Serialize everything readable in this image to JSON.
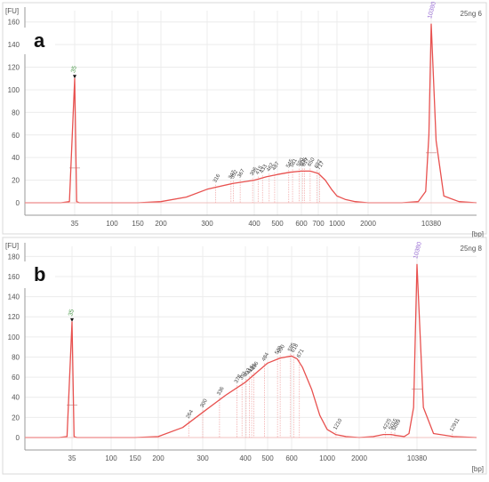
{
  "colors": {
    "trace": "#e8514f",
    "axis": "#9a9a9a",
    "grid": "#ececec",
    "marker_green": "#5aa35a",
    "marker_purple": "#9b6fd6",
    "background": "#ffffff",
    "panel_frame": "#d8d8d8"
  },
  "chart_data": [
    {
      "type": "line",
      "panel_letter": "a",
      "sample_label": "25ng 6",
      "ylabel": "[FU]",
      "xlabel": "[bp]",
      "ylim": [
        0,
        170
      ],
      "yticks": [
        0,
        20,
        40,
        60,
        80,
        100,
        120,
        140,
        160
      ],
      "x_scale": "log",
      "xticks": [
        "35",
        "100",
        "150",
        "200",
        "300",
        "400",
        "500",
        "600",
        "700",
        "1000",
        "2000",
        "10380"
      ],
      "grid": true,
      "marker_labels": [
        {
          "text": "35",
          "color": "green",
          "at_bp": 35
        },
        {
          "text": "10380",
          "color": "purple",
          "at_bp": 10380
        }
      ],
      "peak_labels": [
        "316",
        "347",
        "352",
        "367",
        "396",
        "415",
        "433",
        "462",
        "487",
        "545",
        "561",
        "590",
        "606",
        "617",
        "650",
        "692",
        "717"
      ],
      "series": [
        {
          "x": [
            20,
            30,
            33,
            35,
            37,
            40,
            60,
            100,
            150,
            200,
            250,
            300,
            350,
            400,
            450,
            500,
            550,
            600,
            650,
            700,
            800,
            900,
            1000,
            1200,
            1500,
            2000,
            3000,
            5000,
            8000,
            9500,
            10000,
            10380,
            10800,
            11500,
            13000,
            15000
          ],
          "y": [
            0,
            0,
            1,
            110,
            1,
            0,
            0,
            0,
            0,
            1,
            5,
            12,
            17,
            20,
            23,
            25,
            27,
            28,
            28,
            26,
            20,
            12,
            6,
            3,
            1,
            0,
            0,
            0,
            1,
            10,
            60,
            158,
            55,
            6,
            1,
            0
          ]
        }
      ]
    },
    {
      "type": "line",
      "panel_letter": "b",
      "sample_label": "25ng 8",
      "ylabel": "[FU]",
      "xlabel": "[bp]",
      "ylim": [
        0,
        190
      ],
      "yticks": [
        0,
        20,
        40,
        60,
        80,
        100,
        120,
        140,
        160,
        180
      ],
      "x_scale": "log",
      "xticks": [
        "35",
        "100",
        "150",
        "200",
        "300",
        "400",
        "500",
        "600",
        "1000",
        "2000",
        "10380"
      ],
      "grid": true,
      "marker_labels": [
        {
          "text": "35",
          "color": "green",
          "at_bp": 35
        },
        {
          "text": "10380",
          "color": "purple",
          "at_bp": 10380
        }
      ],
      "peak_labels": [
        "264",
        "300",
        "336",
        "378",
        "391",
        "403",
        "416",
        "426",
        "436",
        "484",
        "539",
        "550",
        "595",
        "618",
        "671",
        "1210",
        "4225",
        "5015",
        "5689",
        "12911"
      ],
      "series": [
        {
          "x": [
            20,
            30,
            33,
            35,
            37,
            40,
            60,
            100,
            150,
            200,
            250,
            300,
            350,
            400,
            450,
            500,
            550,
            600,
            650,
            700,
            800,
            900,
            1000,
            1200,
            1500,
            2000,
            3000,
            4000,
            5000,
            6000,
            8000,
            9500,
            10000,
            10380,
            10800,
            11500,
            13000,
            15000
          ],
          "y": [
            0,
            0,
            1,
            115,
            1,
            0,
            0,
            0,
            0,
            1,
            10,
            25,
            42,
            55,
            65,
            74,
            79,
            81,
            78,
            70,
            48,
            22,
            8,
            3,
            1,
            0,
            1,
            3,
            3,
            2,
            1,
            4,
            30,
            172,
            30,
            4,
            1,
            0
          ]
        }
      ]
    }
  ]
}
